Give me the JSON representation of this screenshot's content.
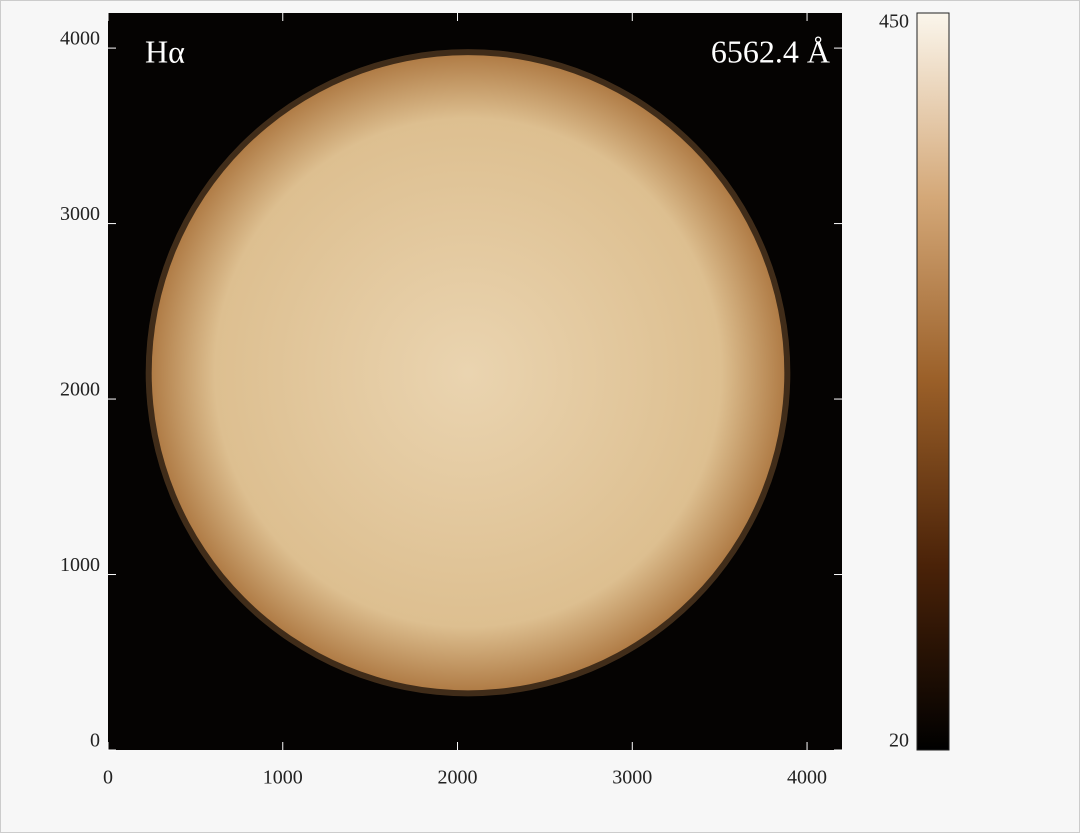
{
  "chart_data": {
    "type": "image",
    "annotations": [
      "Hα",
      "6562.4 Å"
    ],
    "xlim": [
      0,
      4200
    ],
    "ylim": [
      0,
      4200
    ],
    "xticks": [
      0,
      1000,
      2000,
      3000,
      4000
    ],
    "yticks": [
      0,
      1000,
      2000,
      3000,
      4000
    ],
    "disk": {
      "x": 2060,
      "y": 2150,
      "radius": 1810
    },
    "disk_colors": [
      "#ead4b0",
      "#ddbf90",
      "#b07c46"
    ],
    "background_color": "#050302",
    "clim": [
      20,
      450
    ],
    "colormap": [
      "#000000",
      "#4a2208",
      "#9a5f28",
      "#d4a878",
      "#fbf6ec"
    ]
  }
}
